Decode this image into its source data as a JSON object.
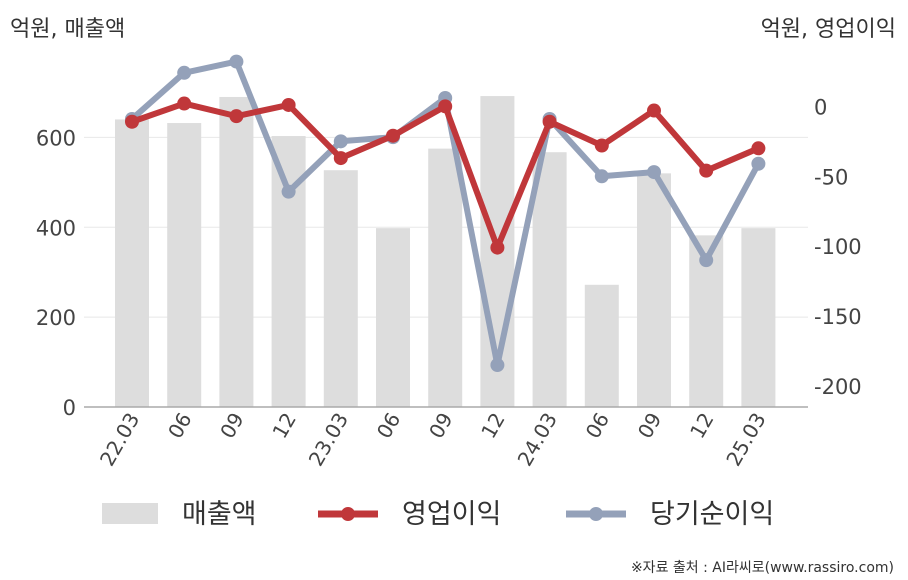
{
  "chart_data": {
    "type": "bar+line",
    "left_axis_title": "억원, 매출액",
    "right_axis_title": "억원, 영업이익",
    "categories": [
      "22.03",
      "06",
      "09",
      "12",
      "23.03",
      "06",
      "09",
      "12",
      "24.03",
      "06",
      "09",
      "12",
      "25.03"
    ],
    "left_axis": {
      "ylim": [
        0,
        750
      ],
      "ticks": [
        0,
        200,
        400,
        600
      ]
    },
    "right_axis": {
      "ylim": [
        -215,
        26
      ],
      "ticks": [
        0,
        -50,
        -100,
        -150,
        -200
      ]
    },
    "series": [
      {
        "name": "매출액",
        "type": "bar",
        "axis": "left",
        "color": "#dddddd",
        "values": [
          640,
          632,
          690,
          603,
          527,
          398,
          575,
          692,
          567,
          272,
          520,
          382,
          398
        ]
      },
      {
        "name": "영업이익",
        "type": "line",
        "axis": "right",
        "color": "#c0373a",
        "values": [
          -11,
          2,
          -7,
          1,
          -37,
          -21,
          0,
          -101,
          -11,
          -28,
          -3,
          -46,
          -30
        ]
      },
      {
        "name": "당기순이익",
        "type": "line",
        "axis": "right",
        "color": "#94a1b9",
        "values": [
          -9,
          24,
          32,
          -61,
          -25,
          -22,
          6,
          -185,
          -9,
          -50,
          -47,
          -110,
          -41
        ]
      }
    ],
    "grid": "horizontal",
    "legend_position": "bottom"
  },
  "source_note": "※자료 출처 : AI라씨로(www.rassiro.com)"
}
